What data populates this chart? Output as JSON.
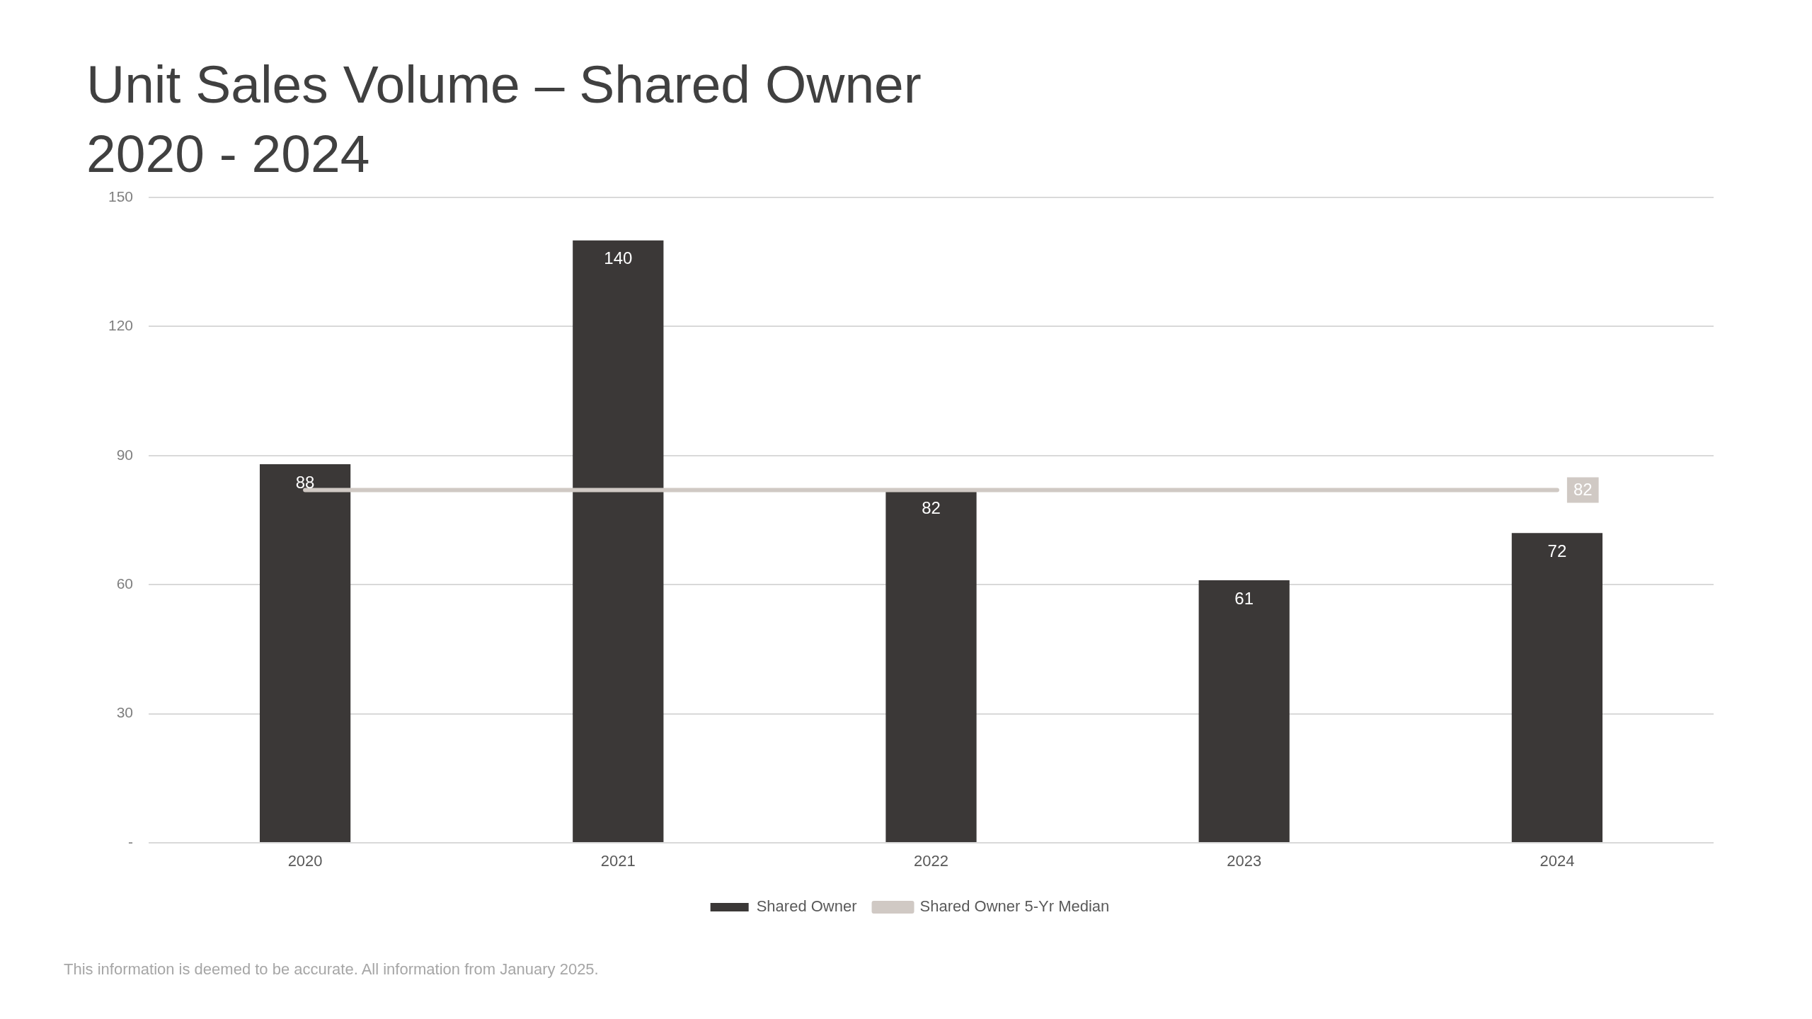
{
  "chart_data": {
    "type": "bar",
    "title": "Unit Sales Volume – Shared Owner",
    "subtitle": "2020 - 2024",
    "categories": [
      "2020",
      "2021",
      "2022",
      "2023",
      "2024"
    ],
    "series": [
      {
        "name": "Shared Owner",
        "color": "#3b3837",
        "values": [
          88,
          140,
          82,
          61,
          72
        ],
        "value_labels": [
          "88",
          "140",
          "82",
          "61",
          "72"
        ]
      },
      {
        "name": "Shared Owner 5-Yr Median",
        "type": "line",
        "color": "#d0c9c4",
        "values": [
          82,
          82,
          82,
          82,
          82
        ],
        "value_labels": [
          null,
          null,
          null,
          null,
          "82"
        ]
      }
    ],
    "ylim": [
      0,
      150
    ],
    "yticks": [
      {
        "value": 0,
        "label": "-"
      },
      30,
      60,
      90,
      120,
      150
    ],
    "grid": "y",
    "legend": "bottom",
    "marker": "none",
    "annotations": [
      "This information is deemed to be accurate. All information from January 2025."
    ]
  }
}
